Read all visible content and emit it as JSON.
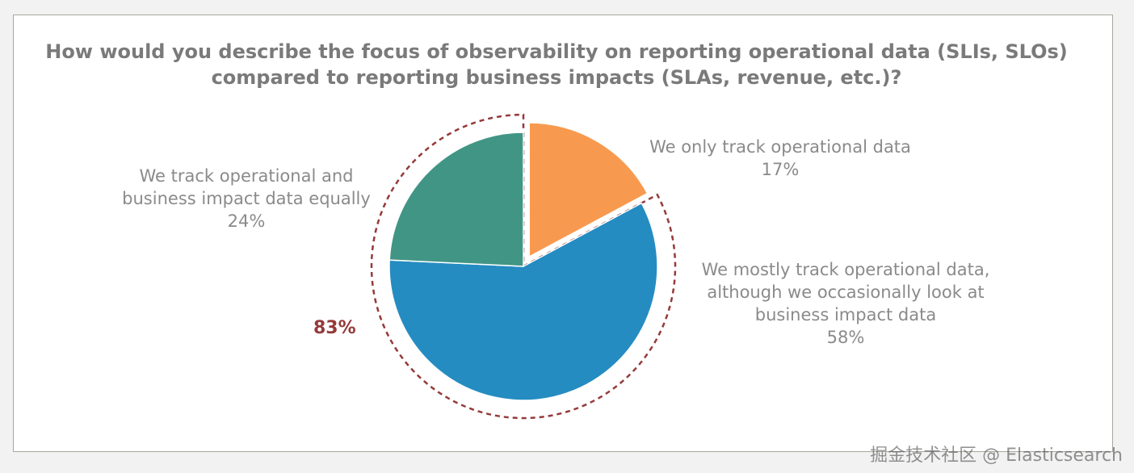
{
  "title_lines": [
    "How would you describe the focus of observability on reporting operational data (SLIs, SLOs)",
    "compared to reporting business impacts (SLAs, revenue, etc.)?"
  ],
  "chart_data": {
    "type": "pie",
    "title": "How would you describe the focus of observability on reporting operational data (SLIs, SLOs) compared to reporting business impacts (SLAs, revenue, etc.)?",
    "slices": [
      {
        "label_lines": [
          "We only track operational data"
        ],
        "value": 17,
        "value_label": "17%",
        "color": "#f79a4f",
        "exploded": true
      },
      {
        "label_lines": [
          "We mostly track operational data,",
          "although we occasionally look at",
          "business impact data"
        ],
        "value": 58,
        "value_label": "58%",
        "color": "#258cc1"
      },
      {
        "label_lines": [
          "We track operational and",
          "business impact data equally"
        ],
        "value": 24,
        "value_label": "24%",
        "color": "#419585"
      }
    ],
    "group_highlight": {
      "label": "83%",
      "color": "#953a3a",
      "slices": [
        1,
        2
      ]
    }
  },
  "watermark": "掘金技术社区 @ Elasticsearch"
}
